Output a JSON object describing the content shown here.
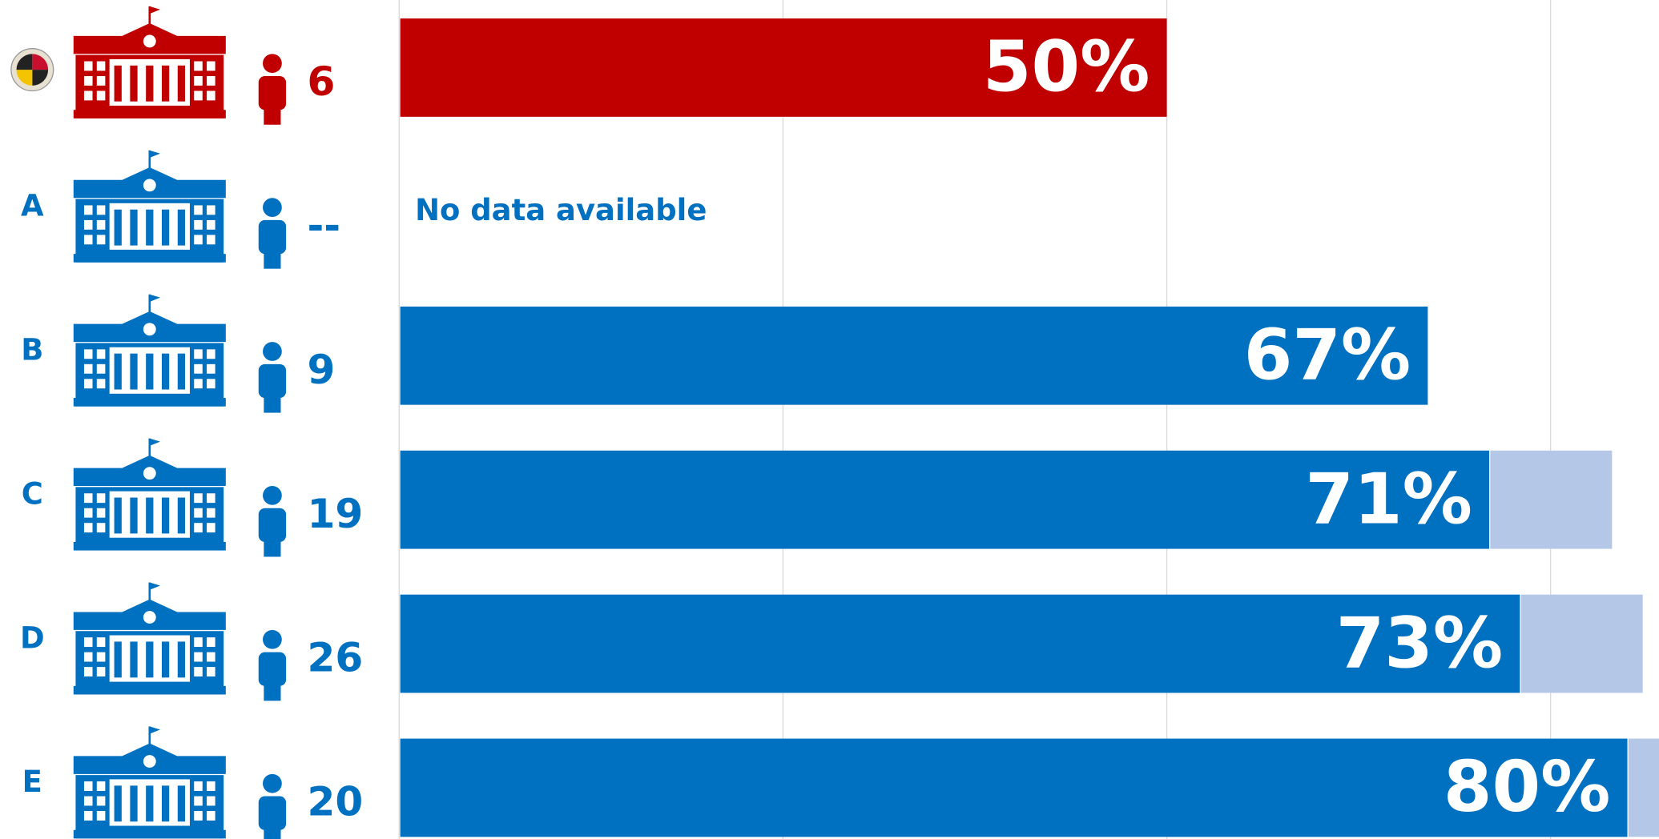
{
  "chart_data": {
    "type": "bar",
    "orientation": "horizontal",
    "categories": [
      null,
      "A",
      "B",
      "C",
      "D",
      "E"
    ],
    "counts": [
      "6",
      "--",
      "9",
      "19",
      "26",
      "20"
    ],
    "colors": [
      "#c00000",
      "#0070c0",
      "#0070c0",
      "#0070c0",
      "#0070c0",
      "#0070c0"
    ],
    "series": [
      {
        "color": "#0070c0",
        "values": [
          50,
          null,
          67,
          71,
          73,
          80
        ],
        "value_labels": [
          "50%",
          null,
          "67%",
          "71%",
          "73%",
          "80%"
        ]
      },
      {
        "color": "#b4c7e7",
        "values": [
          null,
          null,
          null,
          8,
          8,
          8
        ]
      }
    ],
    "annotation": "No data available",
    "xlim": [
      0,
      100
    ],
    "xticks": [
      0,
      25,
      50,
      75,
      100
    ],
    "grid": true
  }
}
